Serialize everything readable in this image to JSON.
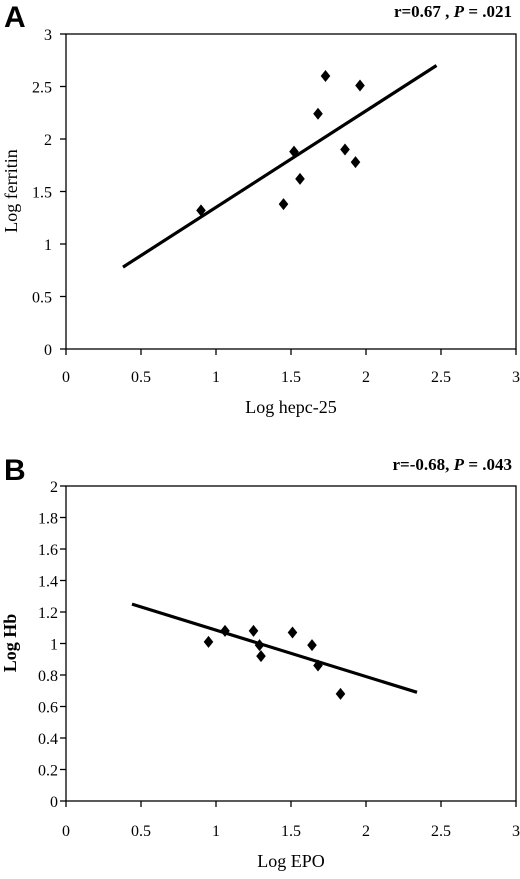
{
  "chart_data": [
    {
      "type": "scatter",
      "panel_label": "A",
      "stat_r": "r=0.67",
      "stat_sep": " , ",
      "stat_p_label": "P",
      "stat_p_value": " = .021",
      "xlabel": "Log hepc-25",
      "ylabel": "Log ferritin",
      "xlim": [
        0,
        3
      ],
      "ylim": [
        0,
        3
      ],
      "x_ticks": [
        0,
        0.5,
        1,
        1.5,
        2,
        2.5,
        3
      ],
      "x_tick_labels": [
        "0",
        "0.5",
        "1",
        "1.5",
        "2",
        "2.5",
        "3"
      ],
      "y_ticks": [
        0,
        0.5,
        1,
        1.5,
        2,
        2.5,
        3
      ],
      "y_tick_labels": [
        "0",
        "0.5",
        "1",
        "1.5",
        "2",
        "2.5",
        "3"
      ],
      "grid": false,
      "points": [
        {
          "x": 0.9,
          "y": 1.32
        },
        {
          "x": 1.45,
          "y": 1.38
        },
        {
          "x": 1.52,
          "y": 1.88
        },
        {
          "x": 1.56,
          "y": 1.62
        },
        {
          "x": 1.68,
          "y": 2.24
        },
        {
          "x": 1.73,
          "y": 2.6
        },
        {
          "x": 1.86,
          "y": 1.9
        },
        {
          "x": 1.93,
          "y": 1.78
        },
        {
          "x": 1.96,
          "y": 2.51
        }
      ],
      "trendline": {
        "x": [
          0.38,
          2.47
        ],
        "y": [
          0.78,
          2.7
        ]
      }
    },
    {
      "type": "scatter",
      "panel_label": "B",
      "stat_r": "r=-0.68,",
      "stat_sep": " ",
      "stat_p_label": "P",
      "stat_p_value": " = .043",
      "xlabel": "Log EPO",
      "ylabel": "Log Hb",
      "xlim": [
        0,
        3
      ],
      "ylim": [
        0,
        2
      ],
      "x_ticks": [
        0,
        0.5,
        1,
        1.5,
        2,
        2.5,
        3
      ],
      "x_tick_labels": [
        "0",
        "0.5",
        "1",
        "1.5",
        "2",
        "2.5",
        "3"
      ],
      "y_ticks": [
        0,
        0.2,
        0.4,
        0.6,
        0.8,
        1,
        1.2,
        1.4,
        1.6,
        1.8,
        2
      ],
      "y_tick_labels": [
        "0",
        "0.2",
        "0.4",
        "0.6",
        "0.8",
        "1",
        "1.2",
        "1.4",
        "1.6",
        "1.8",
        "2"
      ],
      "grid": false,
      "points": [
        {
          "x": 0.95,
          "y": 1.01
        },
        {
          "x": 1.06,
          "y": 1.08
        },
        {
          "x": 1.25,
          "y": 1.08
        },
        {
          "x": 1.29,
          "y": 0.99
        },
        {
          "x": 1.3,
          "y": 0.92
        },
        {
          "x": 1.51,
          "y": 1.07
        },
        {
          "x": 1.64,
          "y": 0.99
        },
        {
          "x": 1.68,
          "y": 0.86
        },
        {
          "x": 1.83,
          "y": 0.68
        }
      ],
      "trendline": {
        "x": [
          0.44,
          2.34
        ],
        "y": [
          1.25,
          0.69
        ]
      }
    }
  ]
}
